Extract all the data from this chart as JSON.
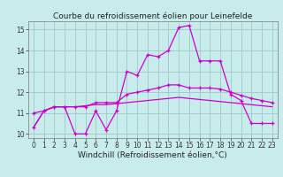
{
  "title": "Courbe du refroidissement éolien pour Leinefelde",
  "xlabel": "Windchill (Refroidissement éolien,°C)",
  "xlim": [
    -0.5,
    23.5
  ],
  "ylim": [
    9.8,
    15.4
  ],
  "yticks": [
    10,
    11,
    12,
    13,
    14,
    15
  ],
  "xticks": [
    0,
    1,
    2,
    3,
    4,
    5,
    6,
    7,
    8,
    9,
    10,
    11,
    12,
    13,
    14,
    15,
    16,
    17,
    18,
    19,
    20,
    21,
    22,
    23
  ],
  "bg_color": "#c8ecec",
  "line_color": "#cc00cc",
  "line1_x": [
    0,
    1,
    2,
    3,
    4,
    5,
    6,
    7,
    8,
    9,
    10,
    11,
    12,
    13,
    14,
    15,
    16,
    17,
    18,
    19,
    20,
    21,
    22,
    23
  ],
  "line1_y": [
    10.3,
    11.1,
    11.3,
    11.3,
    10.0,
    10.0,
    11.1,
    10.2,
    11.1,
    13.0,
    12.8,
    13.8,
    13.7,
    14.0,
    15.1,
    15.2,
    13.5,
    13.5,
    13.5,
    11.9,
    11.6,
    10.5,
    10.5,
    10.5
  ],
  "line2_x": [
    0,
    1,
    2,
    3,
    4,
    5,
    6,
    7,
    8,
    9,
    10,
    11,
    12,
    13,
    14,
    15,
    16,
    17,
    18,
    19,
    20,
    21,
    22,
    23
  ],
  "line2_y": [
    10.3,
    11.1,
    11.3,
    11.3,
    11.3,
    11.35,
    11.4,
    11.4,
    11.45,
    11.5,
    11.55,
    11.6,
    11.65,
    11.7,
    11.75,
    11.7,
    11.65,
    11.6,
    11.55,
    11.5,
    11.45,
    11.4,
    11.35,
    11.3
  ],
  "line3_x": [
    0,
    1,
    2,
    3,
    4,
    5,
    6,
    7,
    8,
    9,
    10,
    11,
    12,
    13,
    14,
    15,
    16,
    17,
    18,
    19,
    20,
    21,
    22,
    23
  ],
  "line3_y": [
    11.0,
    11.1,
    11.3,
    11.3,
    11.3,
    11.3,
    11.5,
    11.5,
    11.5,
    11.9,
    12.0,
    12.1,
    12.2,
    12.35,
    12.35,
    12.2,
    12.2,
    12.2,
    12.15,
    12.0,
    11.85,
    11.7,
    11.6,
    11.5
  ],
  "grid_color": "#9ec8c8",
  "grid_linewidth": 0.6,
  "title_fontsize": 6.5,
  "label_fontsize": 6.5,
  "tick_fontsize": 5.5,
  "line_width": 0.9,
  "marker_size": 3.5,
  "marker_ew": 0.9
}
